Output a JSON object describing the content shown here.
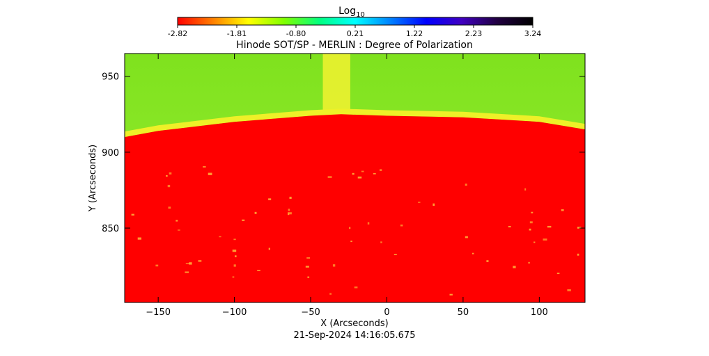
{
  "chart_data": {
    "type": "heatmap",
    "title": "Hinode SOT/SP - MERLIN : Degree of Polarization",
    "xlabel": "X (Arcseconds)",
    "ylabel": "Y (Arcseconds)",
    "timestamp": "21-Sep-2024 14:16:05.675",
    "xlim": [
      -172,
      130
    ],
    "ylim": [
      801,
      965
    ],
    "x_ticks": [
      -150,
      -100,
      -50,
      0,
      50,
      100
    ],
    "y_ticks": [
      850,
      900,
      950
    ],
    "colorbar": {
      "label_base": "Log",
      "label_sub": "10",
      "range": [
        -2.82,
        3.24
      ],
      "tick_values": [
        -2.82,
        -1.81,
        -0.8,
        0.21,
        1.22,
        2.23,
        3.24
      ],
      "tick_labels": [
        "-2.82",
        "-1.81",
        "-0.80",
        "0.21",
        "1.22",
        "2.23",
        "3.24"
      ],
      "colors": [
        "#ff0000",
        "#ff8000",
        "#ffff00",
        "#80ff00",
        "#00ff80",
        "#00ffff",
        "#0080ff",
        "#0000ff",
        "#4000c0",
        "#200040",
        "#000000"
      ]
    },
    "regions": [
      {
        "name": "off-limb",
        "value": 0.0,
        "color": "#7ce820"
      },
      {
        "name": "limb-edge",
        "value": -1.3,
        "color": "#f0f020"
      },
      {
        "name": "disk",
        "value": -2.82,
        "color": "#ff0000"
      }
    ],
    "limb_curve": {
      "x": [
        -172,
        -150,
        -100,
        -50,
        -30,
        0,
        50,
        100,
        130
      ],
      "y": [
        910,
        914,
        920,
        924,
        925,
        924,
        923,
        920,
        915
      ]
    },
    "vertical_band": {
      "x": [
        -42,
        -24
      ],
      "color": "#f2f230"
    }
  }
}
